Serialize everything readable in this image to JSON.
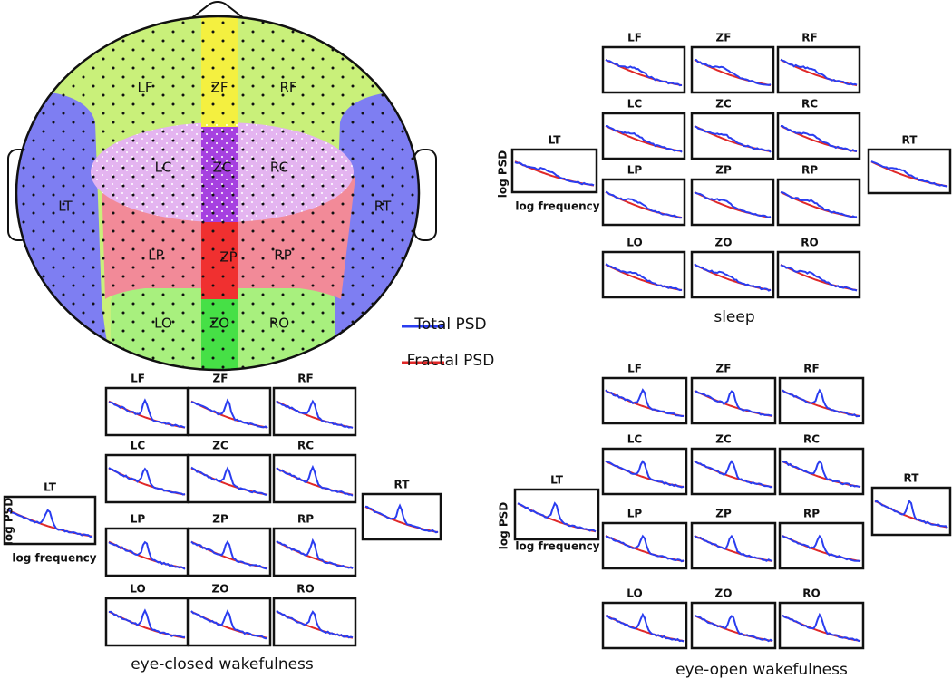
{
  "head_map": {
    "regions": [
      "LF",
      "ZF",
      "RF",
      "LT",
      "LC",
      "ZC",
      "RC",
      "RT",
      "LP",
      "ZP",
      "RP",
      "LO",
      "ZO",
      "RO"
    ]
  },
  "legend": {
    "items": [
      {
        "name": "Total PSD",
        "color": "#2a3df0"
      },
      {
        "name": "Fractal PSD",
        "color": "#e02828"
      }
    ]
  },
  "panels": [
    {
      "title": "sleep",
      "y_label": "log PSD",
      "x_label": "log frequency",
      "plots": [
        "LF",
        "ZF",
        "RF",
        "LC",
        "ZC",
        "RC",
        "LP",
        "ZP",
        "RP",
        "LO",
        "ZO",
        "RO",
        "LT",
        "RT"
      ]
    },
    {
      "title": "eye-closed wakefulness",
      "y_label": "log PSD",
      "x_label": "log frequency",
      "plots": [
        "LF",
        "ZF",
        "RF",
        "LC",
        "ZC",
        "RC",
        "LP",
        "ZP",
        "RP",
        "LO",
        "ZO",
        "RO",
        "LT",
        "RT"
      ]
    },
    {
      "title": "eye-open wakefulness",
      "y_label": "log PSD",
      "x_label": "log frequency",
      "plots": [
        "LF",
        "ZF",
        "RF",
        "LC",
        "ZC",
        "RC",
        "LP",
        "ZP",
        "RP",
        "LO",
        "ZO",
        "RO",
        "LT",
        "RT"
      ]
    }
  ]
}
